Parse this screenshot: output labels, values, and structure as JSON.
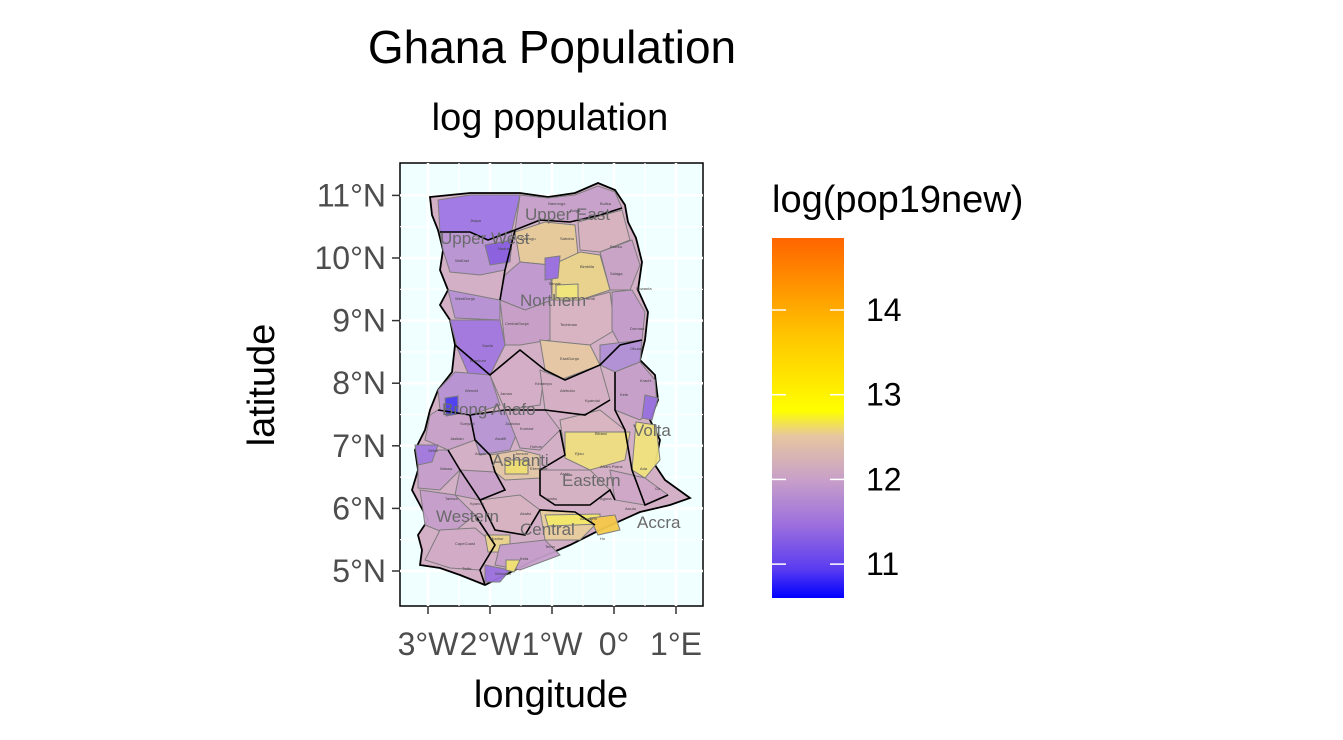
{
  "chart_data": {
    "type": "choropleth",
    "title": "Ghana Population",
    "subtitle": "log population",
    "xlabel": "longitude",
    "ylabel": "latitude",
    "x_ticks": [
      "3°W",
      "2°W",
      "1°W",
      "0°",
      "1°E"
    ],
    "y_ticks": [
      "5°N",
      "6°N",
      "7°N",
      "8°N",
      "9°N",
      "10°N",
      "11°N"
    ],
    "xlim": [
      -3.6,
      1.4
    ],
    "ylim": [
      4.6,
      11.25
    ],
    "legend": {
      "title": "log(pop19new)",
      "breaks": [
        "11",
        "12",
        "13",
        "14"
      ],
      "range": [
        10.6,
        14.85
      ],
      "colors": [
        "#0000ff",
        "#9b6ede",
        "#c8a0c8",
        "#e6d28c",
        "#ffff00",
        "#ffc800",
        "#ff6400"
      ],
      "position": "right"
    },
    "region_labels": [
      "Upper East",
      "Upper West",
      "Northern",
      "Brong Ahafo",
      "Ashanti",
      "Eastern",
      "Western",
      "Central",
      "Volta",
      "Accra"
    ],
    "district_labels": [
      "WaEast",
      "Jirapa",
      "Nadowli",
      "WestGonja",
      "CentralGonja",
      "Sawla",
      "Yendi",
      "Tamale",
      "EastGonja",
      "Wenchi",
      "Kintampo",
      "Atebubu",
      "Sunyani",
      "Asutifi",
      "Kumasi",
      "Ejisu",
      "Afram Plains",
      "Kwahu",
      "Akuapem",
      "Ho",
      "Keta",
      "Tema",
      "Winneba",
      "CapeCoast",
      "Tarkwa",
      "Wassa",
      "Sefwi",
      "Juaboso",
      "Krachi",
      "Nkwanta",
      "Bawku",
      "Bolga",
      "Navrongo",
      "Builsa",
      "Zabzugu",
      "Saboba",
      "Bimbilla",
      "Salaga",
      "Techiman",
      "Dormaa",
      "Berekum",
      "Jaman",
      "Kpandai",
      "Kete",
      "Jasikan",
      "Hohoe",
      "Kpando",
      "Akatsi",
      "Ada",
      "Ga",
      "Awutu",
      "Agona",
      "Assin",
      "Twifo",
      "Mpohor",
      "Ellembele",
      "Jomoro",
      "Aowin",
      "Bibiani",
      "Obuasi"
    ]
  }
}
